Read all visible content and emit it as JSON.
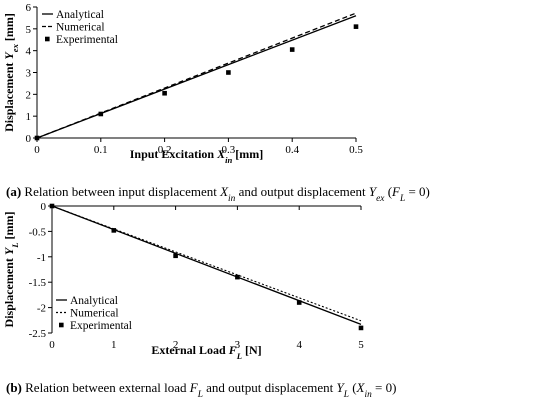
{
  "chart_data": [
    {
      "type": "line",
      "panel": "a",
      "caption_parts": [
        "(a)",
        " Relation between input displacement ",
        "X",
        "in",
        " and output displacement ",
        "Y",
        "ex",
        " (",
        "F",
        "L",
        " = 0)"
      ],
      "xlabel_parts": [
        "Input Excitation ",
        "X",
        "in",
        " [mm]"
      ],
      "ylabel_parts": [
        "Displacement ",
        "Y",
        "ex",
        " [mm]"
      ],
      "xlim": [
        0,
        0.5
      ],
      "ylim": [
        0,
        6
      ],
      "xticks": [
        0,
        0.1,
        0.2,
        0.3,
        0.4,
        0.5
      ],
      "xtick_labels": [
        "0",
        "0.1",
        "0.2",
        "0.3",
        "0.4",
        "0.5"
      ],
      "yticks": [
        0,
        1,
        2,
        3,
        4,
        5,
        6
      ],
      "ytick_labels": [
        "0",
        "1",
        "2",
        "3",
        "4",
        "5",
        "6"
      ],
      "legend_position": "top-left",
      "grid": false,
      "series": [
        {
          "name": "Analytical",
          "style": "solid",
          "x": [
            0,
            0.5
          ],
          "y": [
            0,
            5.6
          ]
        },
        {
          "name": "Numerical",
          "style": "dashed",
          "x": [
            0,
            0.5
          ],
          "y": [
            0,
            5.72
          ]
        },
        {
          "name": "Experimental",
          "style": "marker",
          "x": [
            0,
            0.1,
            0.2,
            0.3,
            0.4,
            0.5
          ],
          "y": [
            0,
            1.1,
            2.05,
            3.0,
            4.05,
            5.1
          ]
        }
      ]
    },
    {
      "type": "line",
      "panel": "b",
      "caption_parts": [
        "(b)",
        " Relation between external load ",
        "F",
        "L",
        " and output displacement ",
        "Y",
        "L",
        " (",
        "X",
        "in",
        " = 0)"
      ],
      "xlabel_parts": [
        "External Load ",
        "F",
        "L",
        " [N]"
      ],
      "ylabel_parts": [
        "Displacement ",
        "Y",
        "L",
        " [mm]"
      ],
      "xlim": [
        0,
        5
      ],
      "ylim": [
        -2.5,
        0
      ],
      "xticks": [
        0,
        1,
        2,
        3,
        4,
        5
      ],
      "xtick_labels": [
        "0",
        "1",
        "2",
        "3",
        "4",
        "5"
      ],
      "yticks": [
        0,
        -0.5,
        -1,
        -1.5,
        -2,
        -2.5
      ],
      "ytick_labels": [
        "0",
        "-0.5",
        "-1",
        "-1.5",
        "-2",
        "-2.5"
      ],
      "legend_position": "bottom-left",
      "grid": false,
      "series": [
        {
          "name": "Analytical",
          "style": "solid",
          "x": [
            0,
            5
          ],
          "y": [
            0,
            -2.33
          ]
        },
        {
          "name": "Numerical",
          "style": "dotted",
          "x": [
            0,
            5
          ],
          "y": [
            0,
            -2.26
          ]
        },
        {
          "name": "Experimental",
          "style": "marker",
          "x": [
            0,
            1,
            2,
            3,
            4,
            5
          ],
          "y": [
            0,
            -0.48,
            -0.98,
            -1.4,
            -1.9,
            -2.4
          ]
        }
      ]
    }
  ]
}
